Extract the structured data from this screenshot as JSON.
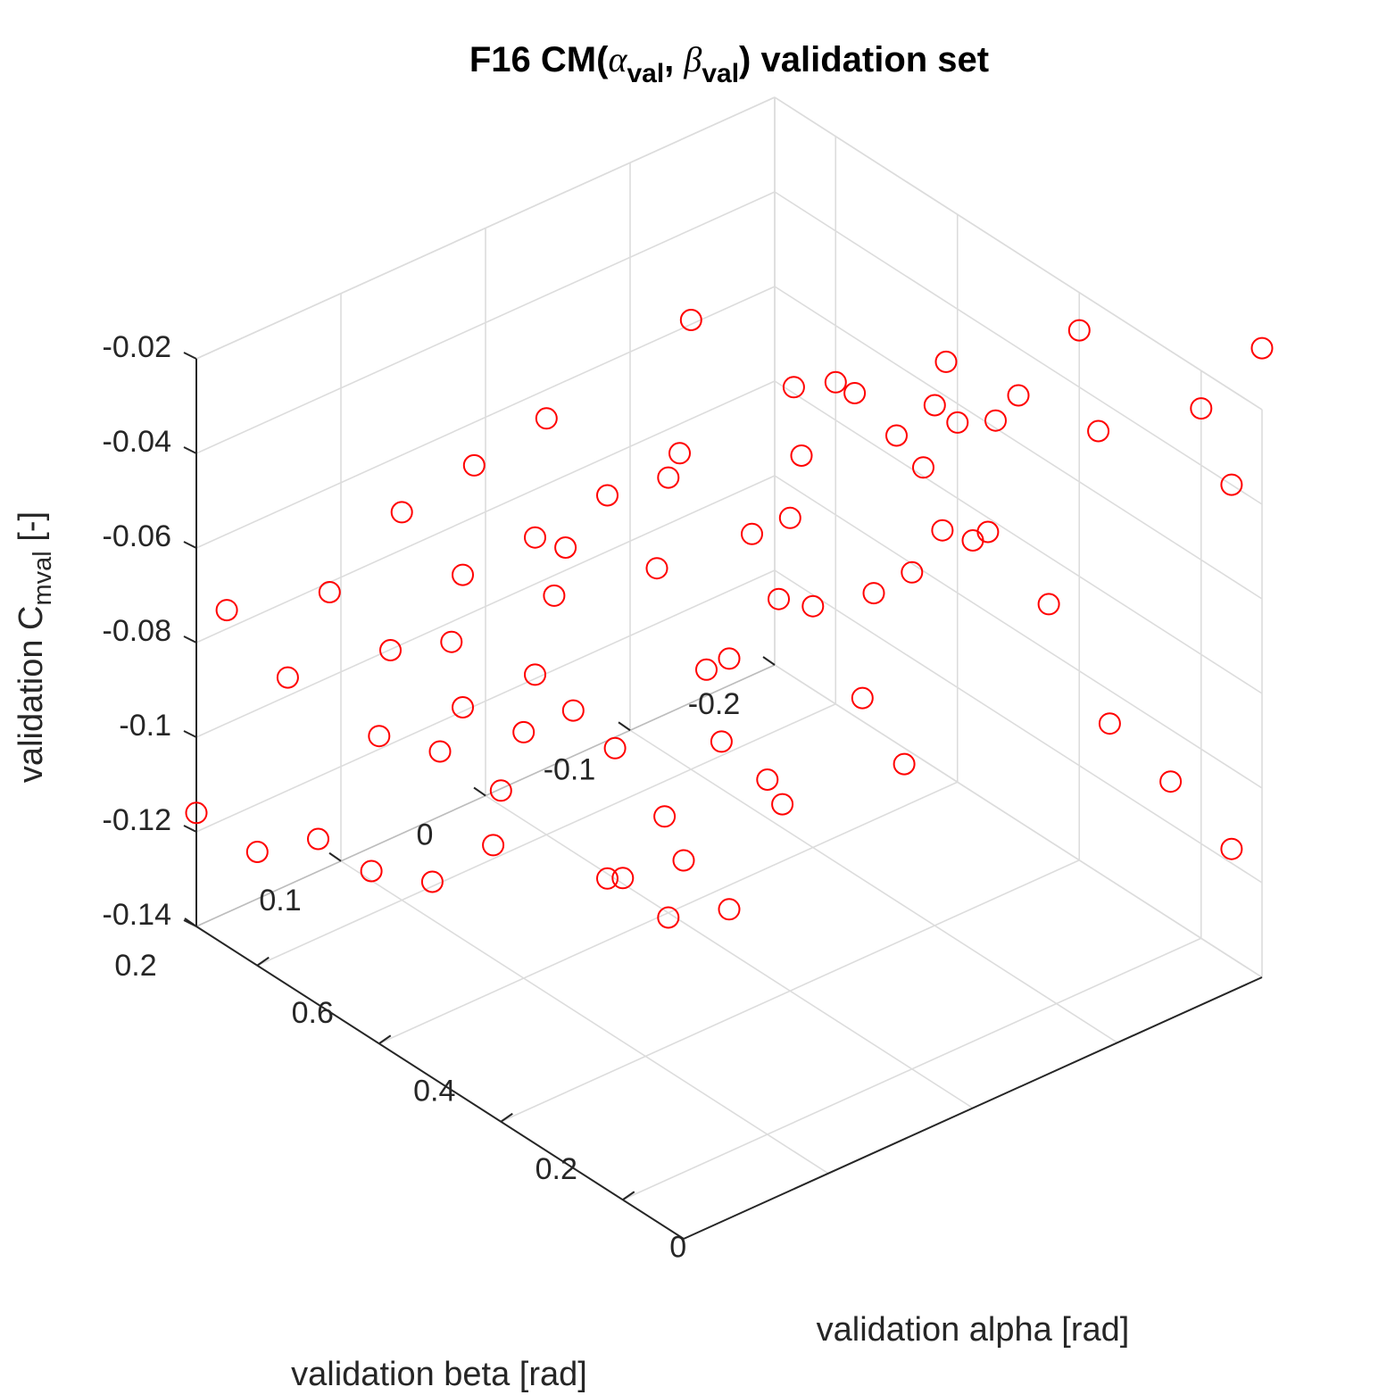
{
  "chart_data": {
    "type": "scatter3d",
    "title": {
      "prefix": "F16 CM(",
      "alpha_symbol": "α",
      "alpha_sub": "val",
      "separator": ", ",
      "beta_symbol": "β",
      "beta_sub": "val",
      "suffix": ") validation set"
    },
    "xlabel": "validation beta [rad]",
    "ylabel": "validation alpha [rad]",
    "zlabel": {
      "prefix": "validation C",
      "sub": "mval",
      "suffix": " [-]"
    },
    "xlim": [
      -0.2,
      0.2
    ],
    "ylim": [
      -0.1,
      0.7
    ],
    "zlim": [
      -0.14,
      -0.02
    ],
    "x_ticks": [
      {
        "value": -0.2,
        "label": "-0.2"
      },
      {
        "value": -0.1,
        "label": "-0.1"
      },
      {
        "value": 0,
        "label": "0"
      },
      {
        "value": 0.1,
        "label": "0.1"
      },
      {
        "value": 0.2,
        "label": "0.2"
      }
    ],
    "y_ticks": [
      {
        "value": 0,
        "label": "0"
      },
      {
        "value": 0.2,
        "label": "0.2"
      },
      {
        "value": 0.4,
        "label": "0.4"
      },
      {
        "value": 0.6,
        "label": "0.6"
      }
    ],
    "z_ticks": [
      {
        "value": -0.02,
        "label": "-0.02"
      },
      {
        "value": -0.04,
        "label": "-0.04"
      },
      {
        "value": -0.06,
        "label": "-0.06"
      },
      {
        "value": -0.08,
        "label": "-0.08"
      },
      {
        "value": -0.1,
        "label": "-0.1"
      },
      {
        "value": -0.12,
        "label": "-0.12"
      },
      {
        "value": -0.14,
        "label": "-0.14"
      }
    ],
    "grid": true,
    "marker": "circle",
    "marker_color": "#ff0000",
    "grid_color": "#dcdcdc",
    "axis_color": "#262626",
    "points": [
      [
        -0.2,
        0.35,
        -0.083
      ],
      [
        -0.2,
        0.25,
        -0.09
      ],
      [
        -0.2,
        0.15,
        -0.107
      ],
      [
        -0.2,
        0.05,
        -0.111
      ],
      [
        -0.2,
        -0.05,
        -0.117
      ],
      [
        -0.1,
        0.55,
        -0.13
      ],
      [
        -0.1,
        0.45,
        -0.135
      ],
      [
        -0.1,
        0.25,
        -0.11
      ],
      [
        0.0,
        0.5,
        -0.141
      ],
      [
        0.0,
        0.4,
        -0.141
      ],
      [
        0.0,
        0.3,
        -0.131
      ],
      [
        0.1,
        0.65,
        -0.138
      ],
      [
        0.1,
        0.55,
        -0.132
      ],
      [
        0.1,
        0.45,
        -0.116
      ],
      [
        0.2,
        0.7,
        -0.116
      ],
      [
        0.2,
        0.6,
        -0.116
      ],
      [
        0.2,
        0.5,
        -0.105
      ],
      [
        -0.2,
        0.6,
        -0.072
      ],
      [
        -0.2,
        0.5,
        -0.075
      ],
      [
        -0.2,
        0.4,
        -0.064
      ],
      [
        -0.2,
        0.3,
        -0.05
      ],
      [
        -0.1,
        0.5,
        -0.082
      ],
      [
        -0.1,
        0.4,
        -0.089
      ],
      [
        -0.1,
        0.3,
        -0.078
      ],
      [
        -0.05,
        0.2,
        -0.085
      ],
      [
        0.05,
        0.5,
        -0.091
      ],
      [
        0.0,
        0.3,
        -0.078
      ],
      [
        0.1,
        0.5,
        -0.091
      ],
      [
        0.1,
        0.4,
        -0.088
      ],
      [
        0.1,
        0.25,
        -0.079
      ],
      [
        -0.15,
        0.55,
        -0.062
      ],
      [
        -0.15,
        0.45,
        -0.055
      ],
      [
        -0.1,
        0.6,
        -0.045
      ],
      [
        -0.05,
        0.5,
        -0.058
      ],
      [
        0.0,
        0.6,
        -0.052
      ],
      [
        0.0,
        0.5,
        -0.06
      ],
      [
        0.05,
        0.6,
        -0.055
      ],
      [
        0.05,
        0.5,
        -0.062
      ],
      [
        0.1,
        0.6,
        -0.058
      ],
      [
        0.1,
        0.5,
        -0.063
      ],
      [
        0.15,
        0.6,
        -0.068
      ],
      [
        0.15,
        0.5,
        -0.072
      ],
      [
        0.2,
        0.65,
        -0.069
      ],
      [
        0.2,
        0.55,
        -0.075
      ],
      [
        -0.2,
        0.2,
        -0.028
      ],
      [
        -0.15,
        0.3,
        -0.036
      ],
      [
        -0.1,
        0.2,
        -0.03
      ],
      [
        -0.05,
        0.3,
        -0.042
      ],
      [
        0.0,
        0.2,
        -0.04
      ],
      [
        0.0,
        0.4,
        -0.048
      ],
      [
        0.05,
        0.3,
        -0.052
      ],
      [
        0.05,
        0.45,
        -0.06
      ],
      [
        0.1,
        0.35,
        -0.055
      ],
      [
        0.15,
        0.4,
        -0.062
      ],
      [
        0.2,
        0.3,
        -0.07
      ],
      [
        0.2,
        0.4,
        -0.075
      ],
      [
        -0.2,
        -0.05,
        -0.04
      ],
      [
        -0.15,
        0.05,
        -0.03
      ],
      [
        -0.1,
        0.1,
        -0.025
      ],
      [
        -0.05,
        0.1,
        -0.028
      ],
      [
        0.0,
        0.0,
        -0.035
      ],
      [
        0.05,
        0.1,
        -0.042
      ],
      [
        0.1,
        0.1,
        -0.05
      ],
      [
        0.15,
        0.2,
        -0.06
      ],
      [
        0.2,
        0.2,
        -0.07
      ],
      [
        -0.2,
        0.0,
        -0.028
      ],
      [
        -0.2,
        -0.1,
        -0.007
      ],
      [
        0.0,
        -0.1,
        -0.02
      ],
      [
        0.0,
        -0.05,
        -0.022
      ],
      [
        0.2,
        -0.1,
        -0.06
      ],
      [
        0.2,
        0.0,
        -0.072
      ],
      [
        0.15,
        0.05,
        -0.07
      ],
      [
        0.1,
        0.0,
        -0.065
      ]
    ]
  }
}
